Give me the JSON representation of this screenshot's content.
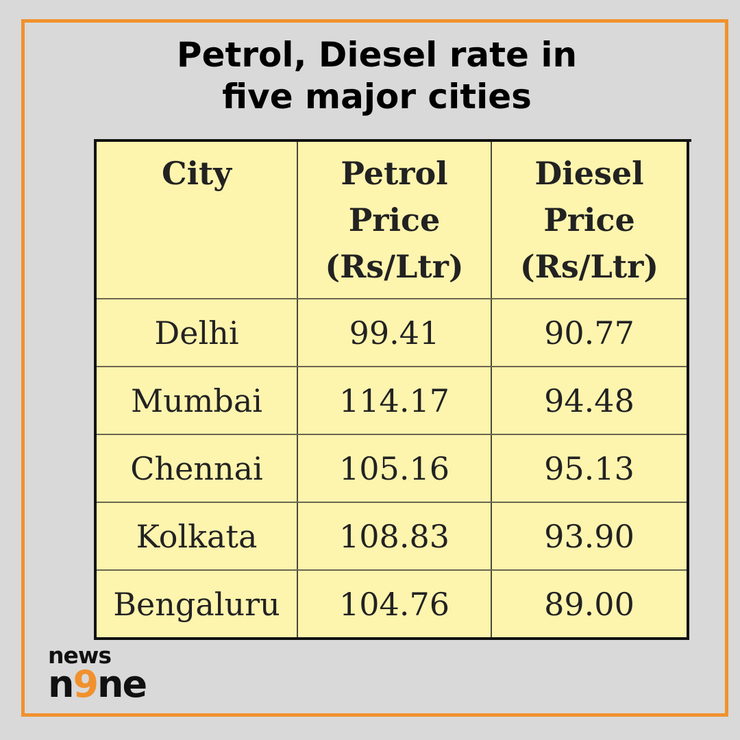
{
  "title": {
    "line1": "Petrol, Diesel rate in",
    "line2": "five major cities"
  },
  "table": {
    "headers": [
      [
        "City"
      ],
      [
        "Petrol",
        "Price",
        "(Rs/Ltr)"
      ],
      [
        "Diesel",
        "Price",
        "(Rs/Ltr)"
      ]
    ],
    "rows": [
      {
        "city": "Delhi",
        "petrol": "99.41",
        "diesel": "90.77"
      },
      {
        "city": "Mumbai",
        "petrol": "114.17",
        "diesel": "94.48"
      },
      {
        "city": "Chennai",
        "petrol": "105.16",
        "diesel": "95.13"
      },
      {
        "city": "Kolkata",
        "petrol": "108.83",
        "diesel": "93.90"
      },
      {
        "city": "Bengaluru",
        "petrol": "104.76",
        "diesel": "89.00"
      }
    ]
  },
  "logo": {
    "line1": "news",
    "line2_part1": "n",
    "line2_accent": "9",
    "line2_part2": "ne"
  },
  "colors": {
    "frame": "#f0912d",
    "background": "#d9d9d9",
    "table_fill": "#fdf4ae",
    "logo_accent": "#f0912d"
  }
}
